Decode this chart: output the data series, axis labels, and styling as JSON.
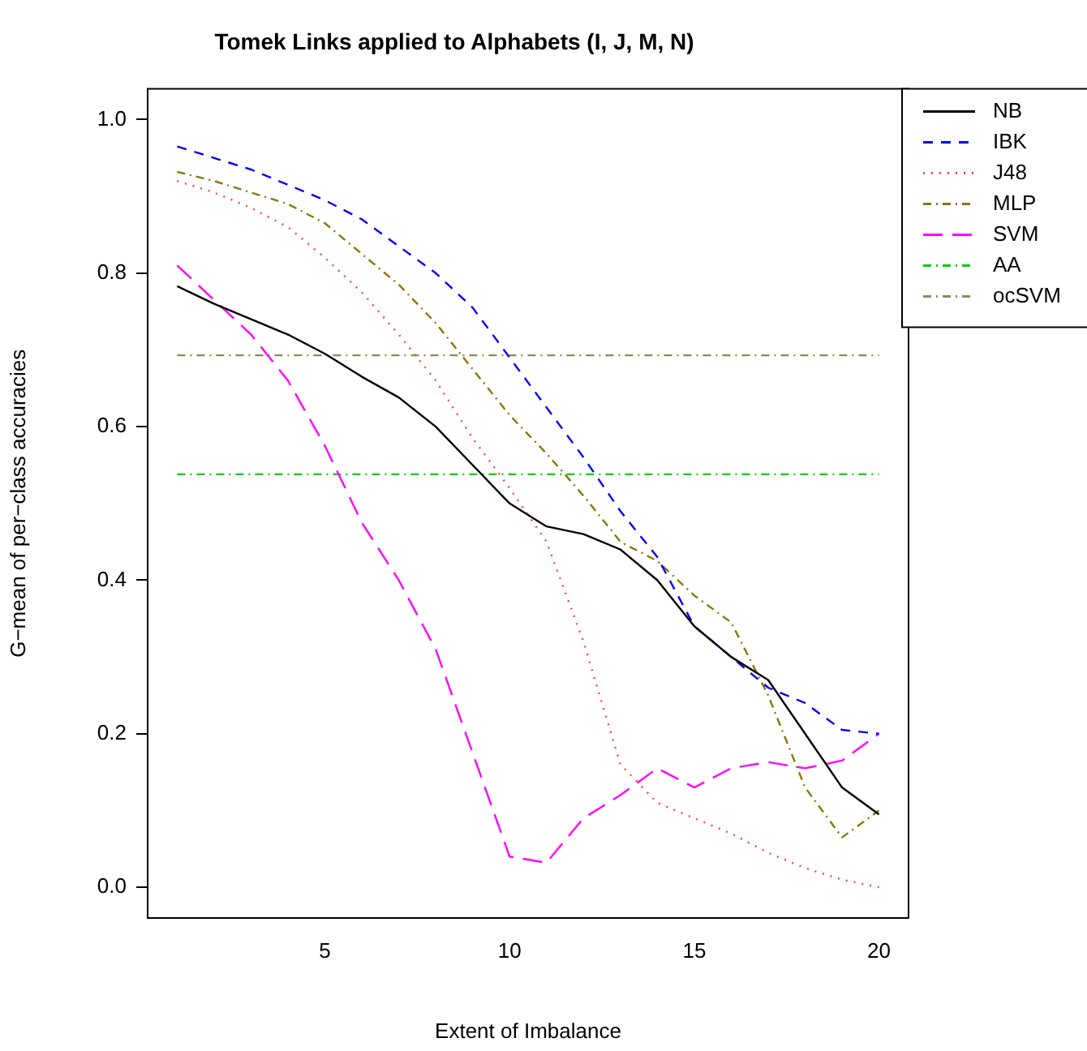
{
  "chart_data": {
    "type": "line",
    "title": "Tomek Links applied to Alphabets (I, J, M, N)",
    "xlabel": "Extent of Imbalance",
    "ylabel": "G−mean of per−class accuracies",
    "x": [
      1,
      2,
      3,
      4,
      5,
      6,
      7,
      8,
      9,
      10,
      11,
      12,
      13,
      14,
      15,
      16,
      17,
      18,
      19,
      20
    ],
    "xlim": [
      0.2,
      20.8
    ],
    "xticks": [
      5,
      10,
      15,
      20
    ],
    "ylim": [
      -0.04,
      1.04
    ],
    "yticks": [
      {
        "value": 0,
        "label": "0.0"
      },
      {
        "value": 0.2,
        "label": "0.2"
      },
      {
        "value": 0.4,
        "label": "0.4"
      },
      {
        "value": 0.6,
        "label": "0.6"
      },
      {
        "value": 0.8,
        "label": "0.8"
      },
      {
        "value": 1,
        "label": "1.0"
      }
    ],
    "grid": false,
    "legend": "top right",
    "marker": "none",
    "series": [
      {
        "name": "NB",
        "color": "#000000",
        "line_style": "solid",
        "values": [
          0.783,
          0.76,
          0.74,
          0.72,
          0.695,
          0.665,
          0.638,
          0.6,
          0.55,
          0.5,
          0.47,
          0.46,
          0.44,
          0.4,
          0.34,
          0.3,
          0.27,
          0.2,
          0.13,
          0.095
        ]
      },
      {
        "name": "IBK",
        "color": "#0000ff",
        "line_style": "dashed",
        "values": [
          0.965,
          0.95,
          0.935,
          0.915,
          0.895,
          0.87,
          0.835,
          0.8,
          0.755,
          0.69,
          0.625,
          0.56,
          0.49,
          0.43,
          0.34,
          0.3,
          0.26,
          0.24,
          0.205,
          0.2
        ]
      },
      {
        "name": "J48",
        "color": "#ff4040",
        "line_style": "dotted",
        "values": [
          0.92,
          0.905,
          0.885,
          0.86,
          0.82,
          0.775,
          0.72,
          0.66,
          0.585,
          0.52,
          0.45,
          0.32,
          0.16,
          0.11,
          0.09,
          0.07,
          0.045,
          0.025,
          0.01,
          0.0
        ]
      },
      {
        "name": "MLP",
        "color": "#8b7500",
        "line_style": "dashdot",
        "values": [
          0.932,
          0.92,
          0.905,
          0.89,
          0.865,
          0.825,
          0.785,
          0.735,
          0.675,
          0.615,
          0.565,
          0.51,
          0.45,
          0.425,
          0.38,
          0.345,
          0.25,
          0.13,
          0.065,
          0.1
        ]
      },
      {
        "name": "SVM",
        "color": "#ff00ff",
        "line_style": "longdash",
        "values": [
          0.81,
          0.765,
          0.72,
          0.66,
          0.575,
          0.475,
          0.4,
          0.31,
          0.175,
          0.04,
          0.032,
          0.09,
          0.12,
          0.155,
          0.13,
          0.155,
          0.163,
          0.155,
          0.165,
          0.2
        ]
      },
      {
        "name": "AA",
        "color": "#00cd00",
        "line_style": "dashdot",
        "values": [
          0.538,
          0.538,
          0.538,
          0.538,
          0.538,
          0.538,
          0.538,
          0.538,
          0.538,
          0.538,
          0.538,
          0.538,
          0.538,
          0.538,
          0.538,
          0.538,
          0.538,
          0.538,
          0.538,
          0.538
        ]
      },
      {
        "name": "ocSVM",
        "color": "#8b8b5a",
        "line_style": "dashdot",
        "values": [
          0.693,
          0.693,
          0.693,
          0.693,
          0.693,
          0.693,
          0.693,
          0.693,
          0.693,
          0.693,
          0.693,
          0.693,
          0.693,
          0.693,
          0.693,
          0.693,
          0.693,
          0.693,
          0.693,
          0.693
        ]
      }
    ]
  }
}
